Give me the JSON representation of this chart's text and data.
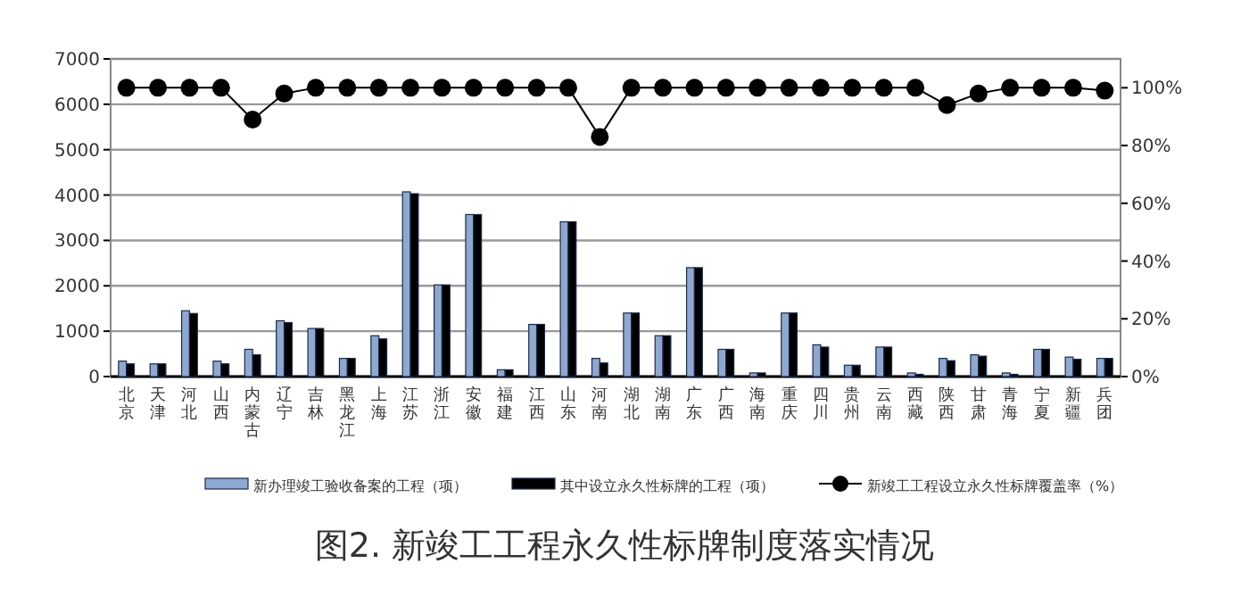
{
  "chart_data": {
    "type": "bar",
    "title": "图2. 新竣工工程永久性标牌制度落实情况",
    "categories": [
      "北京",
      "天津",
      "河北",
      "山西",
      "内蒙古",
      "辽宁",
      "吉林",
      "黑龙江",
      "上海",
      "江苏",
      "浙江",
      "安徽",
      "福建",
      "江西",
      "山东",
      "河南",
      "湖北",
      "湖南",
      "广东",
      "广西",
      "海南",
      "重庆",
      "四川",
      "贵州",
      "云南",
      "西藏",
      "陕西",
      "甘肃",
      "青海",
      "宁夏",
      "新疆",
      "兵团"
    ],
    "series": [
      {
        "name": "新办理竣工验收备案的工程（项）",
        "color": "#8fa8d0",
        "values": [
          340,
          280,
          1450,
          340,
          600,
          1230,
          1060,
          400,
          900,
          4070,
          2020,
          3570,
          150,
          1150,
          3410,
          400,
          1400,
          900,
          2400,
          600,
          80,
          1400,
          700,
          250,
          650,
          80,
          400,
          480,
          80,
          600,
          430,
          400
        ]
      },
      {
        "name": "其中设立永久性标牌的工程（项）",
        "color": "#000000",
        "values": [
          280,
          280,
          1390,
          280,
          480,
          1190,
          1060,
          400,
          830,
          4030,
          2020,
          3570,
          150,
          1150,
          3410,
          300,
          1400,
          900,
          2400,
          600,
          80,
          1400,
          650,
          250,
          650,
          50,
          350,
          450,
          50,
          600,
          380,
          400
        ]
      },
      {
        "name": "新竣工工程设立永久性标牌覆盖率（%）",
        "type": "line",
        "axis": "y2",
        "marker": "circle",
        "color": "#000000",
        "values": [
          100,
          100,
          100,
          100,
          89,
          98,
          100,
          100,
          100,
          100,
          100,
          100,
          100,
          100,
          100,
          83,
          100,
          100,
          100,
          100,
          100,
          100,
          100,
          100,
          100,
          100,
          94,
          98,
          100,
          100,
          100,
          99
        ]
      }
    ],
    "ylim": [
      0,
      7000
    ],
    "yticks": [
      0,
      1000,
      2000,
      3000,
      4000,
      5000,
      6000,
      7000
    ],
    "y2lim": [
      0,
      110
    ],
    "y2ticks": [
      {
        "value": 0,
        "label": "0%"
      },
      {
        "value": 20,
        "label": "20%"
      },
      {
        "value": 40,
        "label": "40%"
      },
      {
        "value": 60,
        "label": "60%"
      },
      {
        "value": 80,
        "label": "80%"
      },
      {
        "value": 100,
        "label": "100%"
      }
    ],
    "grid": "y",
    "legend": "bottom"
  }
}
